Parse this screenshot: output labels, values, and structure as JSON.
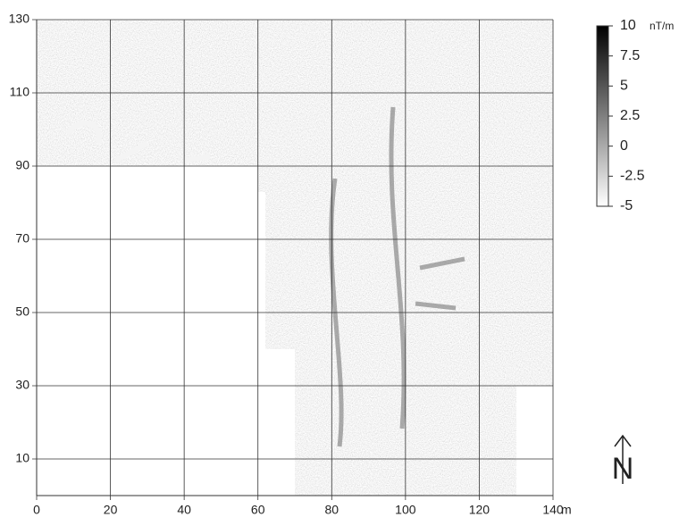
{
  "map": {
    "x_axis": {
      "unit": "m",
      "lim": [
        0,
        140
      ],
      "ticks": [
        0,
        20,
        40,
        60,
        80,
        100,
        120,
        140
      ]
    },
    "y_axis": {
      "lim": [
        0,
        130
      ],
      "ticks": [
        10,
        30,
        50,
        70,
        90,
        110,
        130
      ]
    },
    "colorbar": {
      "unit": "nT/m",
      "lim": [
        -5,
        10
      ],
      "ticks": [
        10,
        7.5,
        5,
        2.5,
        0,
        -2.5,
        -5
      ]
    },
    "north": "N"
  }
}
